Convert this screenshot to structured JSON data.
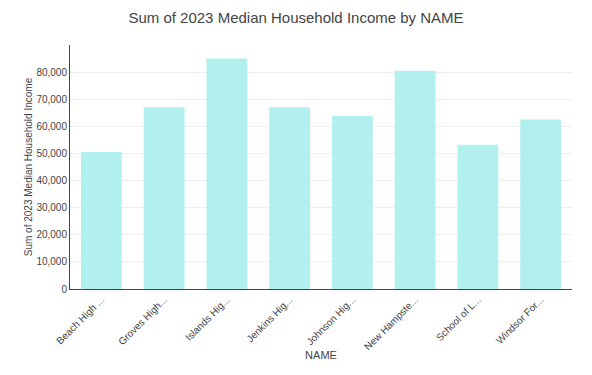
{
  "chart_data": {
    "type": "bar",
    "title": "Sum of 2023 Median Household Income by NAME",
    "xlabel": "NAME",
    "ylabel": "Sum of 2023 Median Household Income",
    "categories": [
      "Beach High ...",
      "Groves High...",
      "Islands Hig...",
      "Jenkins Hig...",
      "Johnson Hig...",
      "New Hampste...",
      "School of L...",
      "Windsor For..."
    ],
    "values": [
      50500,
      67000,
      85000,
      67000,
      63800,
      80500,
      53200,
      62500
    ],
    "color": "#B2F0F0",
    "ylim": [
      0,
      90000
    ],
    "yticks": [
      0,
      {
        "value": 10000,
        "label": "10,000"
      },
      {
        "value": 20000,
        "label": "20,000"
      },
      {
        "value": 30000,
        "label": "30,000"
      },
      {
        "value": 40000,
        "label": "40,000"
      },
      {
        "value": 50000,
        "label": "50,000"
      },
      {
        "value": 60000,
        "label": "60,000"
      },
      {
        "value": 70000,
        "label": "70,000"
      },
      {
        "value": 80000,
        "label": "80,000"
      }
    ],
    "grid": true
  }
}
